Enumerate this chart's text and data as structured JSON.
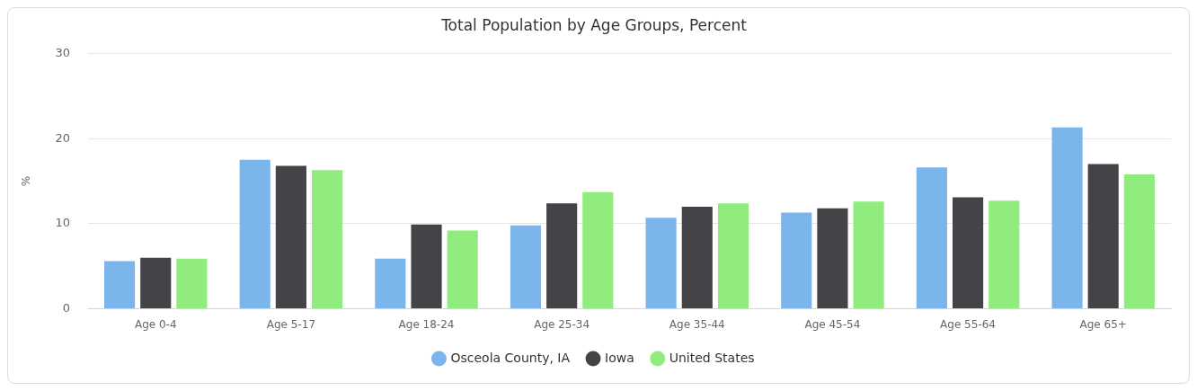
{
  "chart_data": {
    "type": "bar",
    "title": "Total Population by Age Groups, Percent",
    "ylabel": "%",
    "categories": [
      "Age 0-4",
      "Age 5-17",
      "Age 18-24",
      "Age 25-34",
      "Age 35-44",
      "Age 45-54",
      "Age 55-64",
      "Age 65+"
    ],
    "series": [
      {
        "name": "Osceola County, IA",
        "color": "#7cb5ec",
        "values": [
          5.6,
          17.5,
          5.9,
          9.8,
          10.7,
          11.3,
          16.6,
          21.3
        ]
      },
      {
        "name": "Iowa",
        "color": "#434348",
        "values": [
          6.0,
          16.8,
          9.9,
          12.4,
          12.0,
          11.8,
          13.1,
          17.0
        ]
      },
      {
        "name": "United States",
        "color": "#90ed7d",
        "values": [
          5.9,
          16.3,
          9.2,
          13.7,
          12.4,
          12.6,
          12.7,
          15.8
        ]
      }
    ],
    "ylim": [
      0,
      30
    ],
    "yticks": [
      0,
      10,
      20,
      30
    ],
    "grid": "y",
    "legend": "bottom"
  }
}
